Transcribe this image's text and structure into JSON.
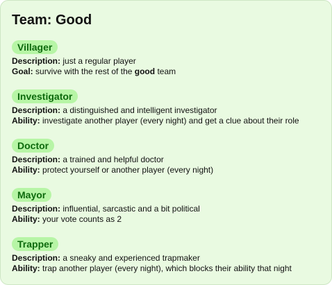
{
  "team": {
    "title": "Team: Good"
  },
  "labels": {
    "description": "Description:",
    "goal": "Goal:",
    "ability": "Ability:"
  },
  "roles": [
    {
      "name": "Villager",
      "description": "just a regular player",
      "goal_prefix": "survive with the rest of the",
      "goal_bold": "good",
      "goal_suffix": "team"
    },
    {
      "name": "Investigator",
      "description": "a distinguished and intelligent investigator",
      "ability": "investigate another player (every night) and get a clue about their role"
    },
    {
      "name": "Doctor",
      "description": "a trained and helpful doctor",
      "ability": "protect yourself or another player (every night)"
    },
    {
      "name": "Mayor",
      "description": "influential, sarcastic and a bit political",
      "ability": "your vote counts as 2"
    },
    {
      "name": "Trapper",
      "description": "a sneaky and experienced trapmaker",
      "ability": "trap another player (every night), which blocks their ability that night"
    }
  ],
  "colors": {
    "card_background": "#e9fae1",
    "card_border": "#cde6c4",
    "badge_background": "#b7f5a6",
    "badge_text": "#0d6a0d"
  }
}
